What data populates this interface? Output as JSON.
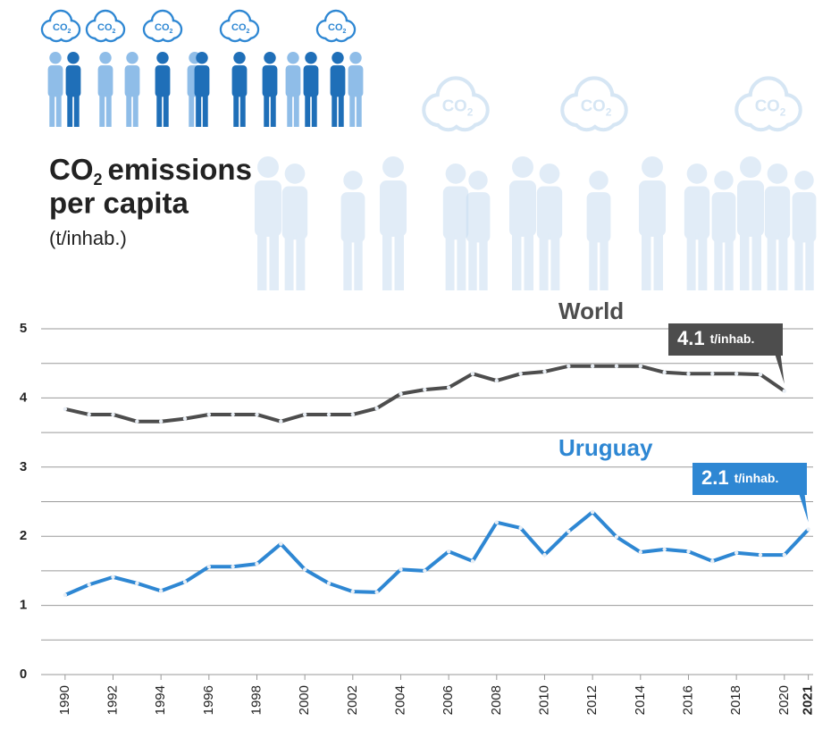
{
  "chart_data": {
    "type": "line",
    "title_lines": [
      [
        "CO",
        "2",
        "emissions"
      ],
      [
        "per capita"
      ]
    ],
    "subtitle": "(t/inhab.)",
    "icon_label": [
      "CO",
      "2"
    ],
    "x": [
      1990,
      1991,
      1992,
      1993,
      1994,
      1995,
      1996,
      1997,
      1998,
      1999,
      2000,
      2001,
      2002,
      2003,
      2004,
      2005,
      2006,
      2007,
      2008,
      2009,
      2010,
      2011,
      2012,
      2013,
      2014,
      2015,
      2016,
      2017,
      2018,
      2019,
      2020,
      2021
    ],
    "xlim": [
      1989,
      2021.2
    ],
    "xticks": [
      1990,
      1992,
      1994,
      1996,
      1998,
      2000,
      2002,
      2004,
      2006,
      2008,
      2010,
      2012,
      2014,
      2016,
      2018,
      2020,
      2021
    ],
    "highlight_xtick": 2021,
    "ylim": [
      0,
      5
    ],
    "yticks": [
      0,
      1,
      2,
      3,
      4,
      5
    ],
    "minor_yticks": [
      0.5,
      1.5,
      2.5,
      3.5,
      4.5
    ],
    "grid": true,
    "annotation_unit": "t/inhab.",
    "series": [
      {
        "name": "World",
        "color": "#4d4d4d",
        "values": [
          3.84,
          3.76,
          3.76,
          3.66,
          3.66,
          3.7,
          3.76,
          3.76,
          3.76,
          3.66,
          3.76,
          3.76,
          3.76,
          3.85,
          4.06,
          4.12,
          4.15,
          4.35,
          4.25,
          4.35,
          4.38,
          4.46,
          4.46,
          4.46,
          4.46,
          4.37,
          4.35,
          4.35,
          4.35,
          4.34,
          4.1,
          null
        ]
      },
      {
        "name": "Uruguay",
        "color": "#2e87d3",
        "values": [
          1.15,
          1.3,
          1.41,
          1.32,
          1.21,
          1.34,
          1.56,
          1.56,
          1.6,
          1.89,
          1.52,
          1.32,
          1.2,
          1.19,
          1.52,
          1.5,
          1.78,
          1.64,
          2.2,
          2.12,
          1.73,
          2.07,
          2.35,
          1.99,
          1.77,
          1.81,
          1.78,
          1.64,
          1.76,
          1.73,
          1.73,
          2.1
        ]
      }
    ]
  }
}
